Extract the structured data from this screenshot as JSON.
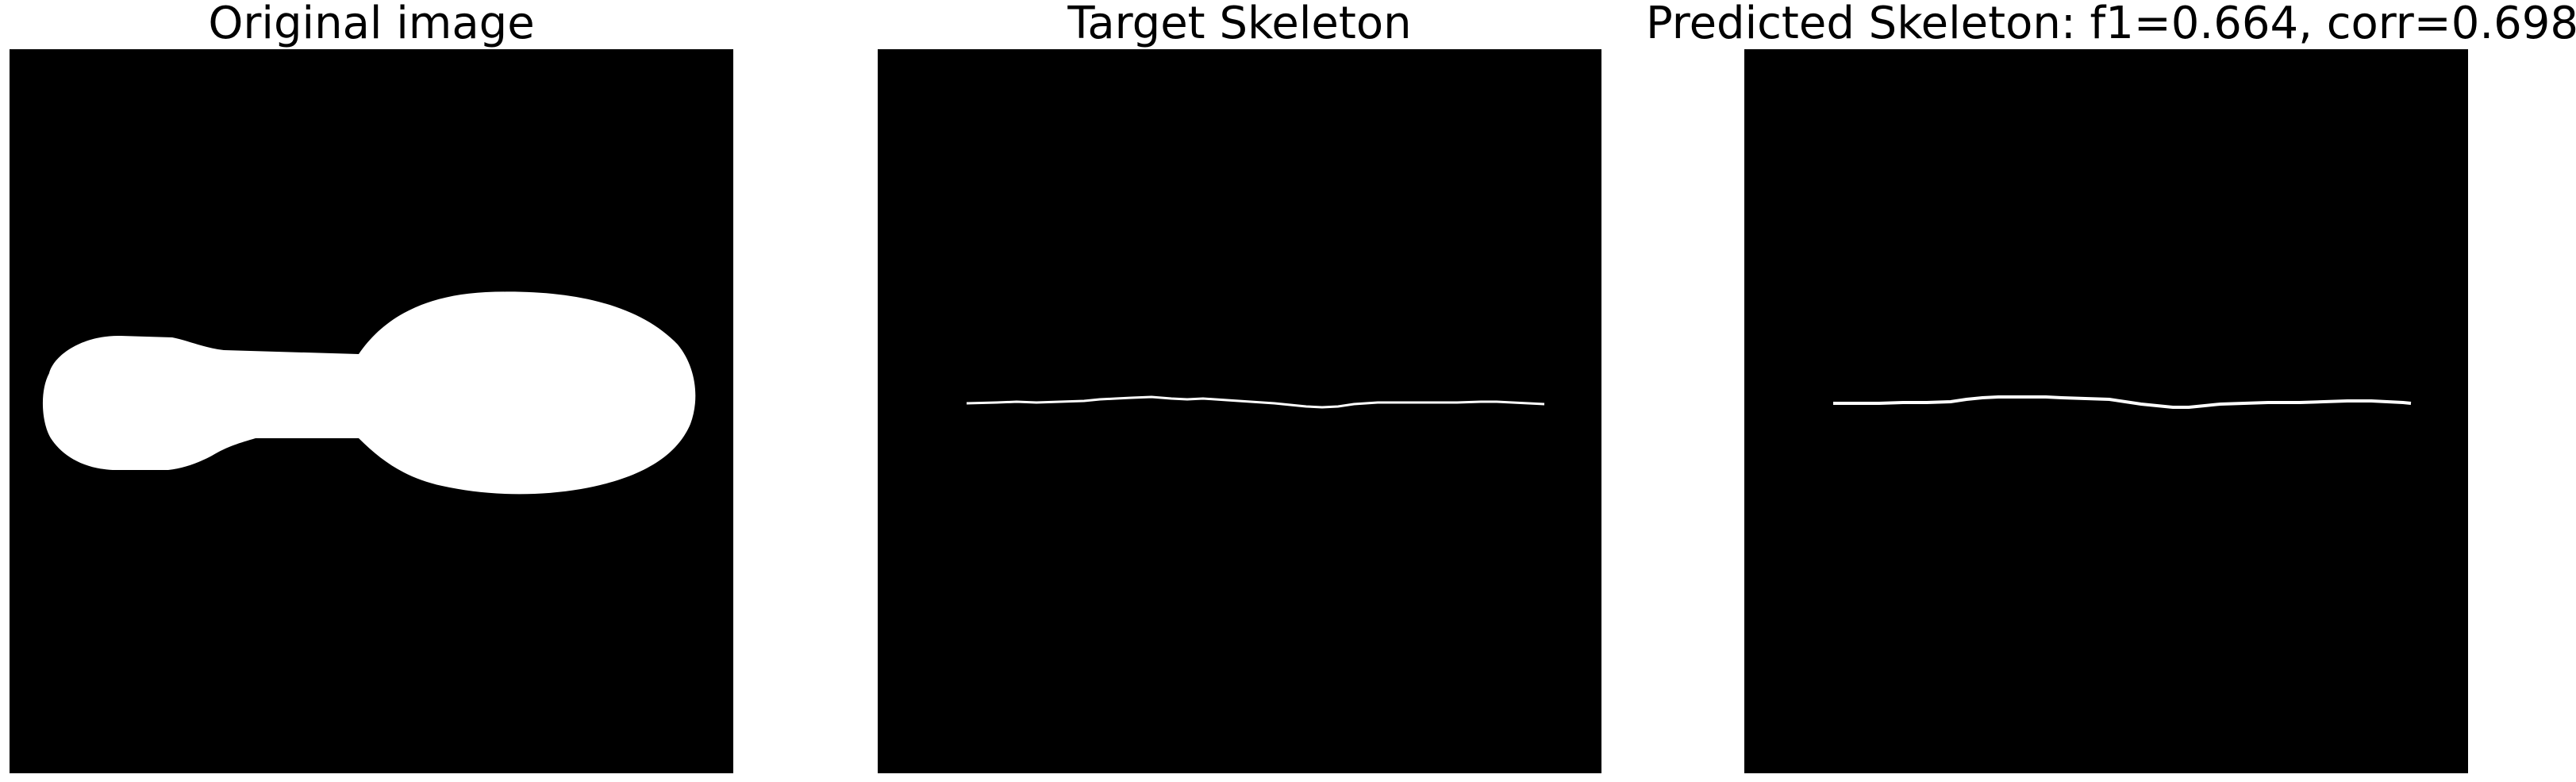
{
  "panels": [
    {
      "title": "Original image"
    },
    {
      "title": "Target Skeleton"
    },
    {
      "title": "Predicted Skeleton: f1=0.664, corr=0.698"
    }
  ],
  "colors": {
    "background": "#ffffff",
    "image_background": "#000000",
    "foreground": "#ffffff"
  }
}
